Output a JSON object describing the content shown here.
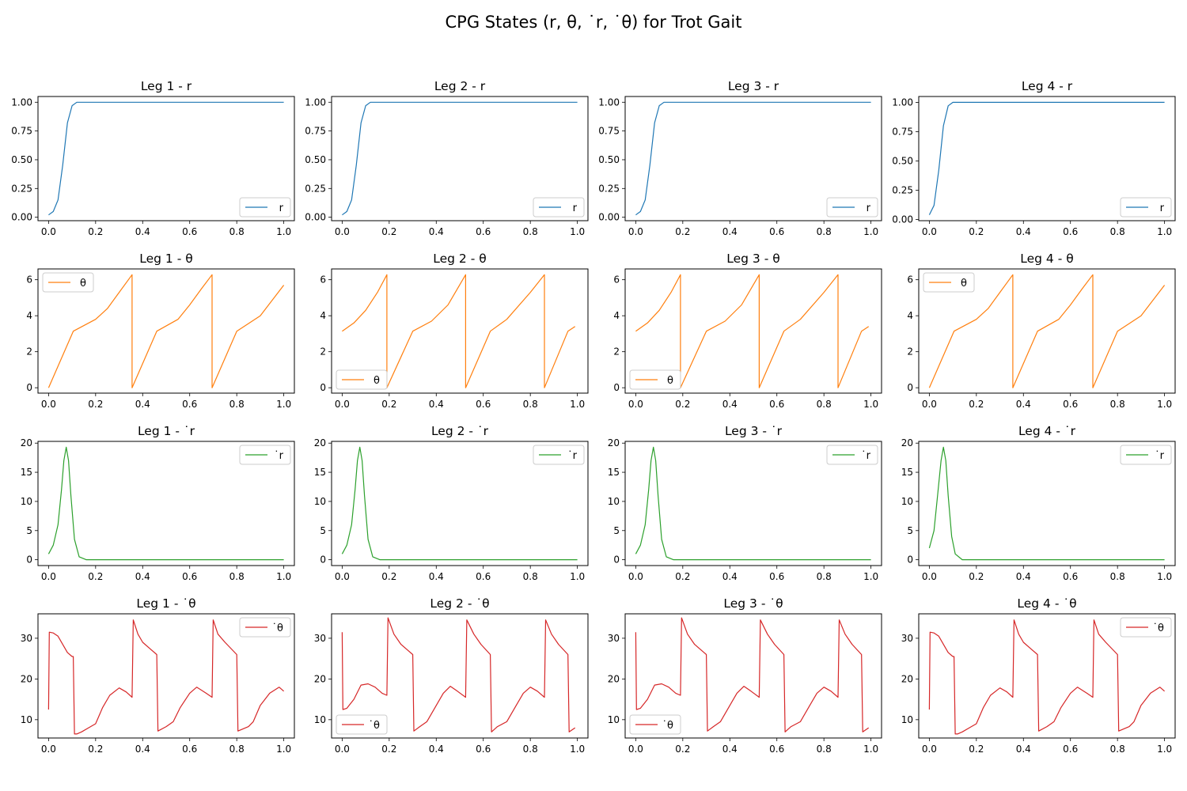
{
  "suptitle": "CPG States (r, θ, ˙r, ˙θ) for Trot Gait",
  "colors": {
    "r": "#1f77b4",
    "theta": "#ff7f0e",
    "rdot": "#2ca02c",
    "thetadot": "#d62728"
  },
  "chart_data": [
    {
      "type": "line",
      "title": "Leg 1 - r",
      "legend": "r",
      "legend_loc": "lower-right",
      "color": "#1f77b4",
      "xlim": [
        0,
        1
      ],
      "ylim": [
        -0.03,
        1.05
      ],
      "xticks": [
        "0.0",
        "0.2",
        "0.4",
        "0.6",
        "0.8",
        "1.0"
      ],
      "yticks": [
        "0.00",
        "0.25",
        "0.50",
        "0.75",
        "1.00"
      ],
      "x": [
        0,
        0.02,
        0.04,
        0.06,
        0.08,
        0.1,
        0.12,
        0.15,
        0.2,
        1.0
      ],
      "y": [
        0.02,
        0.05,
        0.15,
        0.45,
        0.82,
        0.97,
        1.0,
        1.0,
        1.0,
        1.0
      ]
    },
    {
      "type": "line",
      "title": "Leg 2 - r",
      "legend": "r",
      "legend_loc": "lower-right",
      "color": "#1f77b4",
      "xlim": [
        0,
        1
      ],
      "ylim": [
        -0.03,
        1.05
      ],
      "xticks": [
        "0.0",
        "0.2",
        "0.4",
        "0.6",
        "0.8",
        "1.0"
      ],
      "yticks": [
        "0.00",
        "0.25",
        "0.50",
        "0.75",
        "1.00"
      ],
      "x": [
        0,
        0.02,
        0.04,
        0.06,
        0.08,
        0.1,
        0.12,
        0.15,
        0.2,
        1.0
      ],
      "y": [
        0.02,
        0.05,
        0.15,
        0.45,
        0.82,
        0.97,
        1.0,
        1.0,
        1.0,
        1.0
      ]
    },
    {
      "type": "line",
      "title": "Leg 3 - r",
      "legend": "r",
      "legend_loc": "lower-right",
      "color": "#1f77b4",
      "xlim": [
        0,
        1
      ],
      "ylim": [
        -0.03,
        1.05
      ],
      "xticks": [
        "0.0",
        "0.2",
        "0.4",
        "0.6",
        "0.8",
        "1.0"
      ],
      "yticks": [
        "0.00",
        "0.25",
        "0.50",
        "0.75",
        "1.00"
      ],
      "x": [
        0,
        0.02,
        0.04,
        0.06,
        0.08,
        0.1,
        0.12,
        0.15,
        0.2,
        1.0
      ],
      "y": [
        0.02,
        0.05,
        0.15,
        0.45,
        0.82,
        0.97,
        1.0,
        1.0,
        1.0,
        1.0
      ]
    },
    {
      "type": "line",
      "title": "Leg 4 - r",
      "legend": "r",
      "legend_loc": "lower-right",
      "color": "#1f77b4",
      "xlim": [
        0,
        1
      ],
      "ylim": [
        -0.01,
        1.05
      ],
      "xticks": [
        "0.0",
        "0.2",
        "0.4",
        "0.6",
        "0.8",
        "1.0"
      ],
      "yticks": [
        "0.00",
        "0.25",
        "0.50",
        "0.75",
        "1.00"
      ],
      "x": [
        0,
        0.02,
        0.04,
        0.06,
        0.08,
        0.1,
        0.15,
        0.2,
        1.0
      ],
      "y": [
        0.04,
        0.12,
        0.42,
        0.8,
        0.97,
        1.0,
        1.0,
        1.0,
        1.0
      ]
    },
    {
      "type": "line",
      "title": "Leg 1 - θ",
      "legend": "θ",
      "legend_loc": "upper-left",
      "color": "#ff7f0e",
      "xlim": [
        0,
        1
      ],
      "ylim": [
        -0.3,
        6.6
      ],
      "xticks": [
        "0.0",
        "0.2",
        "0.4",
        "0.6",
        "0.8",
        "1.0"
      ],
      "yticks": [
        "0",
        "2",
        "4",
        "6"
      ],
      "x": [
        0,
        0.105,
        0.2,
        0.25,
        0.3,
        0.355,
        0.355,
        0.46,
        0.55,
        0.6,
        0.65,
        0.695,
        0.695,
        0.8,
        0.9,
        1.0
      ],
      "y": [
        0,
        3.14,
        3.8,
        4.4,
        5.3,
        6.28,
        0,
        3.14,
        3.8,
        4.6,
        5.5,
        6.28,
        0,
        3.14,
        4.0,
        5.7
      ]
    },
    {
      "type": "line",
      "title": "Leg 2 - θ",
      "legend": "θ",
      "legend_loc": "lower-left",
      "color": "#ff7f0e",
      "xlim": [
        0,
        1
      ],
      "ylim": [
        -0.3,
        6.6
      ],
      "xticks": [
        "0.0",
        "0.2",
        "0.4",
        "0.6",
        "0.8",
        "1.0"
      ],
      "yticks": [
        "0",
        "2",
        "4",
        "6"
      ],
      "x": [
        0,
        0.05,
        0.1,
        0.15,
        0.19,
        0.19,
        0.3,
        0.38,
        0.45,
        0.525,
        0.525,
        0.63,
        0.7,
        0.8,
        0.86,
        0.86,
        0.96,
        0.99
      ],
      "y": [
        3.14,
        3.6,
        4.3,
        5.3,
        6.28,
        0,
        3.14,
        3.7,
        4.6,
        6.28,
        0,
        3.14,
        3.8,
        5.3,
        6.28,
        0,
        3.14,
        3.4
      ]
    },
    {
      "type": "line",
      "title": "Leg 3 - θ",
      "legend": "θ",
      "legend_loc": "lower-left",
      "color": "#ff7f0e",
      "xlim": [
        0,
        1
      ],
      "ylim": [
        -0.3,
        6.6
      ],
      "xticks": [
        "0.0",
        "0.2",
        "0.4",
        "0.6",
        "0.8",
        "1.0"
      ],
      "yticks": [
        "0",
        "2",
        "4",
        "6"
      ],
      "x": [
        0,
        0.05,
        0.1,
        0.15,
        0.19,
        0.19,
        0.3,
        0.38,
        0.45,
        0.525,
        0.525,
        0.63,
        0.7,
        0.8,
        0.86,
        0.86,
        0.96,
        0.99
      ],
      "y": [
        3.14,
        3.6,
        4.3,
        5.3,
        6.28,
        0,
        3.14,
        3.7,
        4.6,
        6.28,
        0,
        3.14,
        3.8,
        5.3,
        6.28,
        0,
        3.14,
        3.4
      ]
    },
    {
      "type": "line",
      "title": "Leg 4 - θ",
      "legend": "θ",
      "legend_loc": "upper-left",
      "color": "#ff7f0e",
      "xlim": [
        0,
        1
      ],
      "ylim": [
        -0.3,
        6.6
      ],
      "xticks": [
        "0.0",
        "0.2",
        "0.4",
        "0.6",
        "0.8",
        "1.0"
      ],
      "yticks": [
        "0",
        "2",
        "4",
        "6"
      ],
      "x": [
        0,
        0.105,
        0.2,
        0.25,
        0.3,
        0.355,
        0.355,
        0.46,
        0.55,
        0.6,
        0.65,
        0.695,
        0.695,
        0.8,
        0.9,
        1.0
      ],
      "y": [
        0,
        3.14,
        3.8,
        4.4,
        5.3,
        6.28,
        0,
        3.14,
        3.8,
        4.6,
        5.5,
        6.28,
        0,
        3.14,
        4.0,
        5.7
      ]
    },
    {
      "type": "line",
      "title": "Leg 1 - ˙r",
      "legend": "˙r",
      "legend_loc": "upper-right",
      "color": "#2ca02c",
      "xlim": [
        0,
        1
      ],
      "ylim": [
        -1,
        20.3
      ],
      "xticks": [
        "0.0",
        "0.2",
        "0.4",
        "0.6",
        "0.8",
        "1.0"
      ],
      "yticks": [
        "0",
        "5",
        "10",
        "15",
        "20"
      ],
      "x": [
        0,
        0.02,
        0.04,
        0.055,
        0.065,
        0.075,
        0.085,
        0.095,
        0.11,
        0.13,
        0.16,
        0.2,
        1.0
      ],
      "y": [
        1,
        2.5,
        6,
        12,
        17,
        19.3,
        17,
        11,
        3.5,
        0.5,
        0,
        0,
        0
      ]
    },
    {
      "type": "line",
      "title": "Leg 2 - ˙r",
      "legend": "˙r",
      "legend_loc": "upper-right",
      "color": "#2ca02c",
      "xlim": [
        0,
        1
      ],
      "ylim": [
        -1,
        20.3
      ],
      "xticks": [
        "0.0",
        "0.2",
        "0.4",
        "0.6",
        "0.8",
        "1.0"
      ],
      "yticks": [
        "0",
        "5",
        "10",
        "15",
        "20"
      ],
      "x": [
        0,
        0.02,
        0.04,
        0.055,
        0.065,
        0.075,
        0.085,
        0.095,
        0.11,
        0.13,
        0.16,
        0.2,
        1.0
      ],
      "y": [
        1,
        2.5,
        6,
        12,
        17,
        19.3,
        17,
        11,
        3.5,
        0.5,
        0,
        0,
        0
      ]
    },
    {
      "type": "line",
      "title": "Leg 3 - ˙r",
      "legend": "˙r",
      "legend_loc": "upper-right",
      "color": "#2ca02c",
      "xlim": [
        0,
        1
      ],
      "ylim": [
        -1,
        20.3
      ],
      "xticks": [
        "0.0",
        "0.2",
        "0.4",
        "0.6",
        "0.8",
        "1.0"
      ],
      "yticks": [
        "0",
        "5",
        "10",
        "15",
        "20"
      ],
      "x": [
        0,
        0.02,
        0.04,
        0.055,
        0.065,
        0.075,
        0.085,
        0.095,
        0.11,
        0.13,
        0.16,
        0.2,
        1.0
      ],
      "y": [
        1,
        2.5,
        6,
        12,
        17,
        19.3,
        17,
        11,
        3.5,
        0.5,
        0,
        0,
        0
      ]
    },
    {
      "type": "line",
      "title": "Leg 4 - ˙r",
      "legend": "˙r",
      "legend_loc": "upper-right",
      "color": "#2ca02c",
      "xlim": [
        0,
        1
      ],
      "ylim": [
        -1,
        20.3
      ],
      "xticks": [
        "0.0",
        "0.2",
        "0.4",
        "0.6",
        "0.8",
        "1.0"
      ],
      "yticks": [
        "0",
        "5",
        "10",
        "15",
        "20"
      ],
      "x": [
        0,
        0.02,
        0.035,
        0.05,
        0.06,
        0.07,
        0.08,
        0.095,
        0.11,
        0.14,
        0.2,
        1.0
      ],
      "y": [
        2,
        5,
        11,
        17,
        19.3,
        17,
        11,
        4,
        1,
        0,
        0,
        0
      ]
    },
    {
      "type": "line",
      "title": "Leg 1 - ˙θ",
      "legend": "˙θ",
      "legend_loc": "upper-right",
      "color": "#d62728",
      "xlim": [
        0,
        1
      ],
      "ylim": [
        5.5,
        36
      ],
      "xticks": [
        "0.0",
        "0.2",
        "0.4",
        "0.6",
        "0.8",
        "1.0"
      ],
      "yticks": [
        "10",
        "20",
        "30"
      ],
      "x": [
        0,
        0.003,
        0.02,
        0.04,
        0.06,
        0.08,
        0.1,
        0.105,
        0.11,
        0.12,
        0.14,
        0.17,
        0.2,
        0.23,
        0.26,
        0.3,
        0.33,
        0.355,
        0.36,
        0.38,
        0.4,
        0.43,
        0.46,
        0.465,
        0.5,
        0.53,
        0.56,
        0.6,
        0.63,
        0.67,
        0.695,
        0.7,
        0.72,
        0.75,
        0.8,
        0.805,
        0.85,
        0.87,
        0.9,
        0.94,
        0.98,
        1.0
      ],
      "y": [
        12.5,
        31.5,
        31.3,
        30.5,
        28.5,
        26.5,
        25.5,
        25.5,
        6.5,
        6.5,
        7,
        8,
        9,
        13,
        16,
        17.8,
        16.8,
        15.5,
        34.5,
        31,
        29,
        27.5,
        26,
        7.2,
        8.3,
        9.5,
        13,
        16.5,
        18,
        16.5,
        15.5,
        34.5,
        31,
        29,
        26,
        7.2,
        8.3,
        9.5,
        13.5,
        16.5,
        18,
        17
      ]
    },
    {
      "type": "line",
      "title": "Leg 2 - ˙θ",
      "legend": "˙θ",
      "legend_loc": "lower-left",
      "color": "#d62728",
      "xlim": [
        0,
        1
      ],
      "ylim": [
        5.5,
        36
      ],
      "xticks": [
        "0.0",
        "0.2",
        "0.4",
        "0.6",
        "0.8",
        "1.0"
      ],
      "yticks": [
        "10",
        "20",
        "30"
      ],
      "x": [
        0,
        0.003,
        0.02,
        0.05,
        0.08,
        0.11,
        0.14,
        0.17,
        0.19,
        0.195,
        0.22,
        0.25,
        0.28,
        0.3,
        0.305,
        0.33,
        0.36,
        0.4,
        0.43,
        0.46,
        0.49,
        0.525,
        0.53,
        0.56,
        0.59,
        0.63,
        0.635,
        0.66,
        0.7,
        0.74,
        0.77,
        0.8,
        0.83,
        0.86,
        0.865,
        0.89,
        0.92,
        0.96,
        0.965,
        0.99
      ],
      "y": [
        31.5,
        12.5,
        12.8,
        15,
        18.5,
        18.8,
        18,
        16.5,
        16,
        35,
        31,
        28.5,
        27,
        26,
        7.2,
        8.3,
        9.5,
        13.5,
        16.5,
        18.2,
        17,
        15.5,
        34.5,
        31,
        28.5,
        26,
        7,
        8.3,
        9.5,
        13.5,
        16.5,
        18,
        17,
        15.5,
        34.5,
        31,
        28.5,
        26,
        7,
        8
      ]
    },
    {
      "type": "line",
      "title": "Leg 3 - ˙θ",
      "legend": "˙θ",
      "legend_loc": "lower-left",
      "color": "#d62728",
      "xlim": [
        0,
        1
      ],
      "ylim": [
        5.5,
        36
      ],
      "xticks": [
        "0.0",
        "0.2",
        "0.4",
        "0.6",
        "0.8",
        "1.0"
      ],
      "yticks": [
        "10",
        "20",
        "30"
      ],
      "x": [
        0,
        0.003,
        0.02,
        0.05,
        0.08,
        0.11,
        0.14,
        0.17,
        0.19,
        0.195,
        0.22,
        0.25,
        0.28,
        0.3,
        0.305,
        0.33,
        0.36,
        0.4,
        0.43,
        0.46,
        0.49,
        0.525,
        0.53,
        0.56,
        0.59,
        0.63,
        0.635,
        0.66,
        0.7,
        0.74,
        0.77,
        0.8,
        0.83,
        0.86,
        0.865,
        0.89,
        0.92,
        0.96,
        0.965,
        0.99
      ],
      "y": [
        31.5,
        12.5,
        12.8,
        15,
        18.5,
        18.8,
        18,
        16.5,
        16,
        35,
        31,
        28.5,
        27,
        26,
        7.2,
        8.3,
        9.5,
        13.5,
        16.5,
        18.2,
        17,
        15.5,
        34.5,
        31,
        28.5,
        26,
        7,
        8.3,
        9.5,
        13.5,
        16.5,
        18,
        17,
        15.5,
        34.5,
        31,
        28.5,
        26,
        7,
        8
      ]
    },
    {
      "type": "line",
      "title": "Leg 4 - ˙θ",
      "legend": "˙θ",
      "legend_loc": "upper-right",
      "color": "#d62728",
      "xlim": [
        0,
        1
      ],
      "ylim": [
        5.5,
        36
      ],
      "xticks": [
        "0.0",
        "0.2",
        "0.4",
        "0.6",
        "0.8",
        "1.0"
      ],
      "yticks": [
        "10",
        "20",
        "30"
      ],
      "x": [
        0,
        0.003,
        0.02,
        0.04,
        0.06,
        0.08,
        0.1,
        0.105,
        0.11,
        0.12,
        0.14,
        0.17,
        0.2,
        0.23,
        0.26,
        0.3,
        0.33,
        0.355,
        0.36,
        0.38,
        0.4,
        0.43,
        0.46,
        0.465,
        0.5,
        0.53,
        0.56,
        0.6,
        0.63,
        0.67,
        0.695,
        0.7,
        0.72,
        0.75,
        0.8,
        0.805,
        0.85,
        0.87,
        0.9,
        0.94,
        0.98,
        1.0
      ],
      "y": [
        12.5,
        31.5,
        31.3,
        30.5,
        28.5,
        26.5,
        25.5,
        25.5,
        6.5,
        6.5,
        7,
        8,
        9,
        13,
        16,
        17.8,
        16.8,
        15.5,
        34.5,
        31,
        29,
        27.5,
        26,
        7.2,
        8.3,
        9.5,
        13,
        16.5,
        18,
        16.5,
        15.5,
        34.5,
        31,
        29,
        26,
        7.2,
        8.3,
        9.5,
        13.5,
        16.5,
        18,
        17
      ]
    }
  ]
}
